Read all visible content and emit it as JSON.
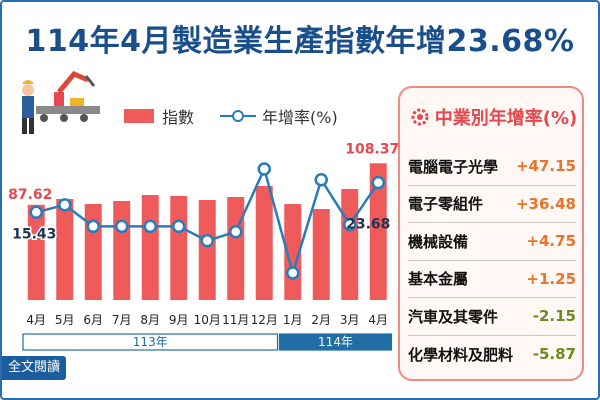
{
  "headline": "114年4月製造業生產指數年增23.68%",
  "legend": {
    "index_label": "指數",
    "yoy_label": "年增率(%)"
  },
  "panel": {
    "title": "中業別年增率(%)",
    "items": [
      {
        "name": "電腦電子光學",
        "value": "+47.15",
        "color": "#e8742b"
      },
      {
        "name": "電子零組件",
        "value": "+36.48",
        "color": "#e8742b"
      },
      {
        "name": "機械設備",
        "value": "+4.75",
        "color": "#e8742b"
      },
      {
        "name": "基本金屬",
        "value": "+1.25",
        "color": "#e8742b"
      },
      {
        "name": "汽車及其零件",
        "value": "-2.15",
        "color": "#6a8c1f"
      },
      {
        "name": "化學材料及肥料",
        "value": "-5.87",
        "color": "#6a8c1f"
      }
    ]
  },
  "full_text_button": "全文閱讀",
  "colors": {
    "bar": "#ef5b5b",
    "bar_light": "#f9a8a3",
    "line": "#2a7cb8",
    "title": "#1a4f8b",
    "year_113": "#ffffff",
    "year_114": "#1f6fa6"
  },
  "chart_data": {
    "type": "bar",
    "categories": [
      "4月",
      "5月",
      "6月",
      "7月",
      "8月",
      "9月",
      "10月",
      "11月",
      "12月",
      "1月",
      "2月",
      "3月",
      "4月"
    ],
    "series": [
      {
        "name": "指數",
        "values": [
          87.62,
          90.5,
          88.0,
          89.5,
          92.5,
          92.0,
          90.0,
          91.5,
          97.0,
          88.0,
          85.5,
          95.5,
          108.37
        ]
      },
      {
        "name": "年增率(%)",
        "values": [
          15.43,
          17.5,
          11.5,
          11.5,
          11.5,
          11.5,
          7.5,
          10.0,
          27.5,
          -1.5,
          24.5,
          12.0,
          23.68
        ]
      }
    ],
    "data_labels": [
      {
        "series": "指數",
        "index": 0,
        "text": "87.62"
      },
      {
        "series": "指數",
        "index": 12,
        "text": "108.37"
      },
      {
        "series": "年增率(%)",
        "index": 0,
        "text": "15.43"
      },
      {
        "series": "年增率(%)",
        "index": 12,
        "text": "23.68"
      }
    ],
    "year_groups": [
      {
        "label": "113年",
        "from": 0,
        "to": 8
      },
      {
        "label": "114年",
        "from": 9,
        "to": 12
      }
    ],
    "legend_position": "top"
  }
}
